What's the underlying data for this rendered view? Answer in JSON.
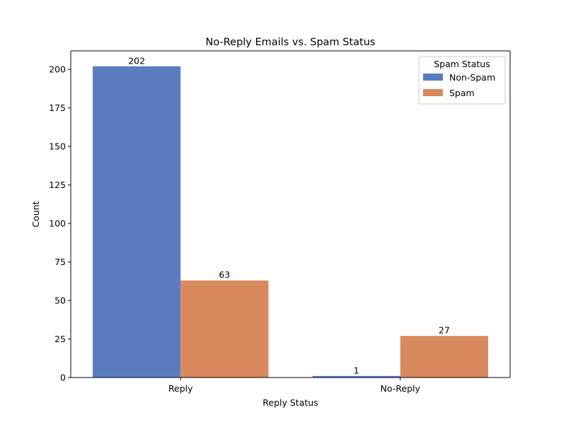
{
  "chart_data": {
    "type": "bar",
    "title": "No-Reply Emails vs. Spam Status",
    "xlabel": "Reply Status",
    "ylabel": "Count",
    "categories": [
      "Reply",
      "No-Reply"
    ],
    "series": [
      {
        "name": "Non-Spam",
        "values": [
          202,
          1
        ],
        "color": "#5a7dc2"
      },
      {
        "name": "Spam",
        "values": [
          63,
          27
        ],
        "color": "#d88a5e"
      }
    ],
    "ylim": [
      0,
      212
    ],
    "yticks": [
      0,
      25,
      50,
      75,
      100,
      125,
      150,
      175,
      200
    ],
    "legend": {
      "title": "Spam Status",
      "position": "top-right"
    },
    "grid": false
  }
}
